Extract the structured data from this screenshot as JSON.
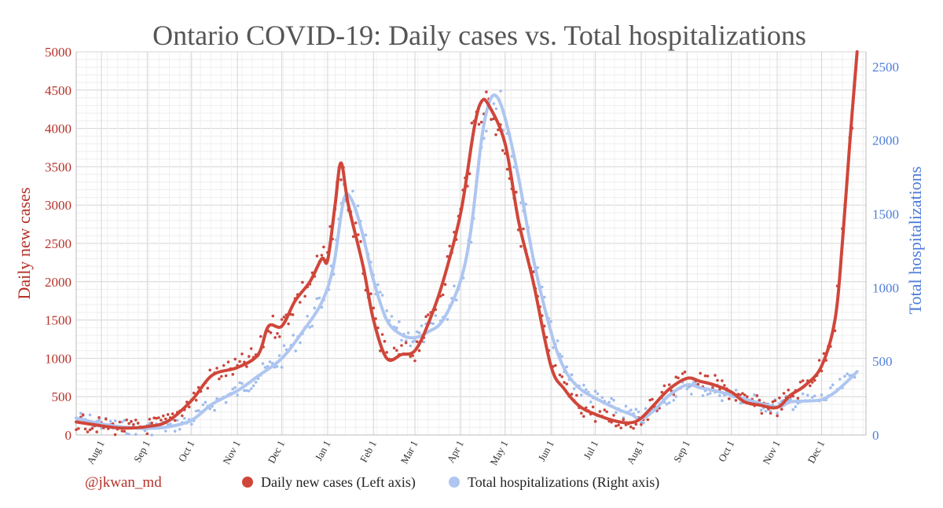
{
  "credit": "@jkwan_md",
  "colors": {
    "cases": "#d0463a",
    "cases_points": "#c9463c",
    "hosp": "#aec6f0",
    "hosp_points": "#9fbcec",
    "grid": "#dddddd",
    "left_axis": "#b5322a",
    "right_axis": "#4f7ed8"
  },
  "chart_data": {
    "type": "line",
    "title": "Ontario COVID-19: Daily cases vs. Total hospitalizations",
    "ylabel": "Daily new cases",
    "y2label": "Total hospitalizations",
    "ylim": [
      0,
      5000
    ],
    "y2lim": [
      0,
      2600
    ],
    "xlim": [
      "2020-07-15",
      "2021-12-31"
    ],
    "yticks": [
      "0",
      "500",
      "1000",
      "1500",
      "2000",
      "2500",
      "3000",
      "3500",
      "4000",
      "4500",
      "5000"
    ],
    "y2ticks": [
      "0",
      "500",
      "1000",
      "1500",
      "2000",
      "2500"
    ],
    "xticks": [
      {
        "label": "Aug 1",
        "date": "2020-08-01"
      },
      {
        "label": "Sep 1",
        "date": "2020-09-01"
      },
      {
        "label": "Oct 1",
        "date": "2020-10-01"
      },
      {
        "label": "Nov 1",
        "date": "2020-11-01"
      },
      {
        "label": "Dec 1",
        "date": "2020-12-01"
      },
      {
        "label": "Jan 1",
        "date": "2021-01-01"
      },
      {
        "label": "Feb 1",
        "date": "2021-02-01"
      },
      {
        "label": "Mar 1",
        "date": "2021-03-01"
      },
      {
        "label": "Apr 1",
        "date": "2021-04-01"
      },
      {
        "label": "May 1",
        "date": "2021-05-01"
      },
      {
        "label": "Jun 1",
        "date": "2021-06-01"
      },
      {
        "label": "Jul 1",
        "date": "2021-07-01"
      },
      {
        "label": "Aug 1",
        "date": "2021-08-01"
      },
      {
        "label": "Sep 1",
        "date": "2021-09-01"
      },
      {
        "label": "Oct 1",
        "date": "2021-10-01"
      },
      {
        "label": "Nov 1",
        "date": "2021-11-01"
      },
      {
        "label": "Dec 1",
        "date": "2021-12-01"
      }
    ],
    "grid": true,
    "legend_position": "bottom",
    "series": [
      {
        "name": "Daily new cases (Left axis)",
        "axis": "left",
        "points": [
          [
            "2020-07-15",
            170
          ],
          [
            "2020-08-01",
            120
          ],
          [
            "2020-08-15",
            90
          ],
          [
            "2020-09-01",
            110
          ],
          [
            "2020-09-15",
            180
          ],
          [
            "2020-10-01",
            450
          ],
          [
            "2020-10-15",
            780
          ],
          [
            "2020-11-01",
            880
          ],
          [
            "2020-11-15",
            1050
          ],
          [
            "2020-11-22",
            1420
          ],
          [
            "2020-12-01",
            1420
          ],
          [
            "2020-12-10",
            1750
          ],
          [
            "2020-12-20",
            2000
          ],
          [
            "2020-12-28",
            2300
          ],
          [
            "2021-01-01",
            2280
          ],
          [
            "2021-01-06",
            3000
          ],
          [
            "2021-01-10",
            3550
          ],
          [
            "2021-01-15",
            3000
          ],
          [
            "2021-01-25",
            2200
          ],
          [
            "2021-02-01",
            1500
          ],
          [
            "2021-02-10",
            1000
          ],
          [
            "2021-02-20",
            1050
          ],
          [
            "2021-03-01",
            1100
          ],
          [
            "2021-03-10",
            1450
          ],
          [
            "2021-03-20",
            2000
          ],
          [
            "2021-04-01",
            2900
          ],
          [
            "2021-04-10",
            4000
          ],
          [
            "2021-04-15",
            4350
          ],
          [
            "2021-04-20",
            4300
          ],
          [
            "2021-05-01",
            3800
          ],
          [
            "2021-05-10",
            2800
          ],
          [
            "2021-05-20",
            2000
          ],
          [
            "2021-06-01",
            900
          ],
          [
            "2021-06-10",
            600
          ],
          [
            "2021-06-20",
            380
          ],
          [
            "2021-07-01",
            270
          ],
          [
            "2021-07-15",
            180
          ],
          [
            "2021-07-25",
            160
          ],
          [
            "2021-08-01",
            220
          ],
          [
            "2021-08-10",
            400
          ],
          [
            "2021-08-20",
            600
          ],
          [
            "2021-09-01",
            740
          ],
          [
            "2021-09-10",
            700
          ],
          [
            "2021-09-20",
            650
          ],
          [
            "2021-10-01",
            560
          ],
          [
            "2021-10-10",
            430
          ],
          [
            "2021-10-20",
            390
          ],
          [
            "2021-11-01",
            360
          ],
          [
            "2021-11-10",
            520
          ],
          [
            "2021-11-20",
            650
          ],
          [
            "2021-12-01",
            900
          ],
          [
            "2021-12-10",
            1500
          ],
          [
            "2021-12-15",
            2500
          ],
          [
            "2021-12-20",
            3800
          ],
          [
            "2021-12-25",
            5000
          ]
        ]
      },
      {
        "name": "Total hospitalizations (Right axis)",
        "axis": "right",
        "points": [
          [
            "2020-07-15",
            115
          ],
          [
            "2020-08-01",
            75
          ],
          [
            "2020-08-15",
            55
          ],
          [
            "2020-09-01",
            45
          ],
          [
            "2020-09-15",
            55
          ],
          [
            "2020-10-01",
            100
          ],
          [
            "2020-10-15",
            210
          ],
          [
            "2020-11-01",
            300
          ],
          [
            "2020-11-15",
            400
          ],
          [
            "2020-12-01",
            520
          ],
          [
            "2020-12-15",
            700
          ],
          [
            "2020-12-28",
            900
          ],
          [
            "2021-01-05",
            1150
          ],
          [
            "2021-01-12",
            1600
          ],
          [
            "2021-01-18",
            1580
          ],
          [
            "2021-01-25",
            1350
          ],
          [
            "2021-02-01",
            1050
          ],
          [
            "2021-02-10",
            780
          ],
          [
            "2021-02-20",
            680
          ],
          [
            "2021-03-01",
            660
          ],
          [
            "2021-03-10",
            700
          ],
          [
            "2021-03-20",
            780
          ],
          [
            "2021-04-01",
            1050
          ],
          [
            "2021-04-08",
            1400
          ],
          [
            "2021-04-15",
            2000
          ],
          [
            "2021-04-20",
            2250
          ],
          [
            "2021-04-25",
            2300
          ],
          [
            "2021-05-01",
            2150
          ],
          [
            "2021-05-10",
            1750
          ],
          [
            "2021-05-20",
            1200
          ],
          [
            "2021-06-01",
            700
          ],
          [
            "2021-06-10",
            450
          ],
          [
            "2021-06-20",
            320
          ],
          [
            "2021-07-01",
            250
          ],
          [
            "2021-07-15",
            180
          ],
          [
            "2021-07-25",
            140
          ],
          [
            "2021-08-01",
            110
          ],
          [
            "2021-08-10",
            170
          ],
          [
            "2021-08-20",
            270
          ],
          [
            "2021-09-01",
            340
          ],
          [
            "2021-09-10",
            320
          ],
          [
            "2021-09-20",
            300
          ],
          [
            "2021-10-01",
            270
          ],
          [
            "2021-10-15",
            230
          ],
          [
            "2021-11-01",
            190
          ],
          [
            "2021-11-10",
            225
          ],
          [
            "2021-11-20",
            230
          ],
          [
            "2021-12-01",
            240
          ],
          [
            "2021-12-10",
            290
          ],
          [
            "2021-12-20",
            380
          ],
          [
            "2021-12-25",
            430
          ]
        ]
      }
    ]
  }
}
